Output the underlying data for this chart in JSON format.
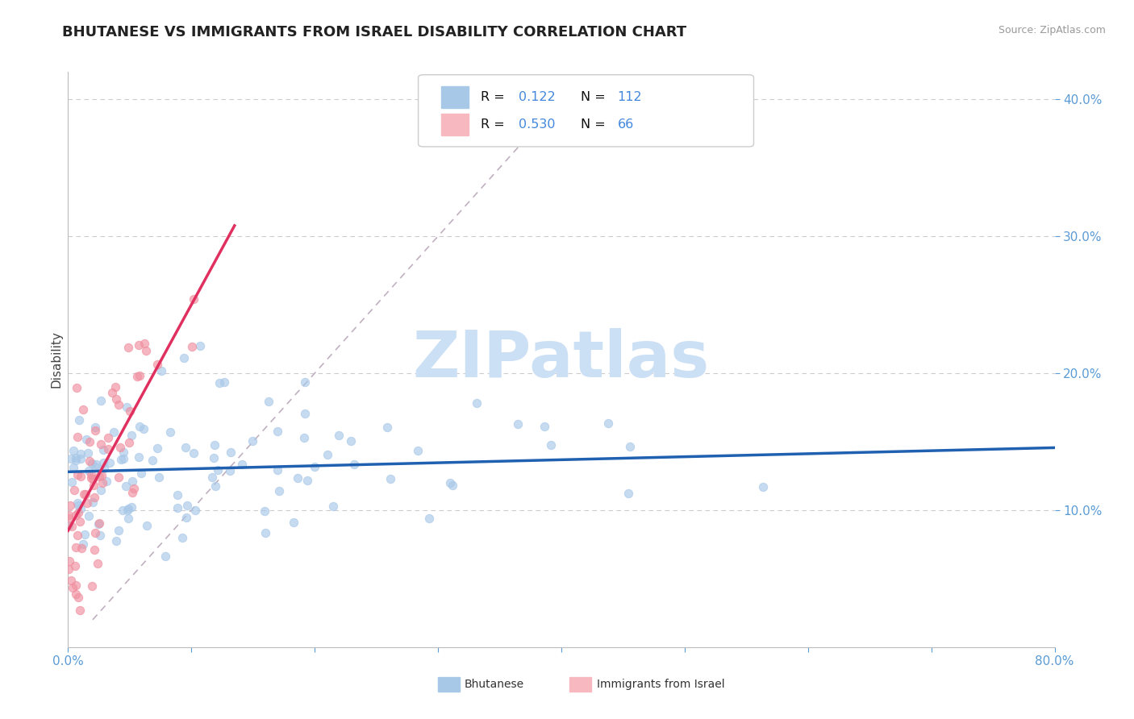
{
  "title": "BHUTANESE VS IMMIGRANTS FROM ISRAEL DISABILITY CORRELATION CHART",
  "source": "Source: ZipAtlas.com",
  "ylabel": "Disability",
  "xlim": [
    0.0,
    0.8
  ],
  "ylim": [
    0.0,
    0.42
  ],
  "xticks": [
    0.0,
    0.1,
    0.2,
    0.3,
    0.4,
    0.5,
    0.6,
    0.7,
    0.8
  ],
  "yticks": [
    0.1,
    0.2,
    0.3,
    0.4
  ],
  "series_blue": {
    "name": "Bhutanese",
    "R": 0.122,
    "N": 112,
    "marker_color": "#a8c8e8",
    "line_color": "#2060b0",
    "legend_color": "#a8c8e8"
  },
  "series_pink": {
    "name": "Immigrants from Israel",
    "R": 0.53,
    "N": 66,
    "marker_color": "#f090a0",
    "line_color": "#e03060",
    "legend_color": "#f8b8c0"
  },
  "diag_color": "#c0b0c0",
  "grid_color": "#cccccc",
  "watermark_color": "#cce0f5",
  "title_color": "#222222",
  "tick_color": "#5b9bd5",
  "label_color": "#444444",
  "legend_text_color_dark": "#111111",
  "legend_text_color_blue": "#4488dd",
  "background_color": "#ffffff",
  "title_fontsize": 13,
  "axis_fontsize": 11,
  "seed": 42
}
